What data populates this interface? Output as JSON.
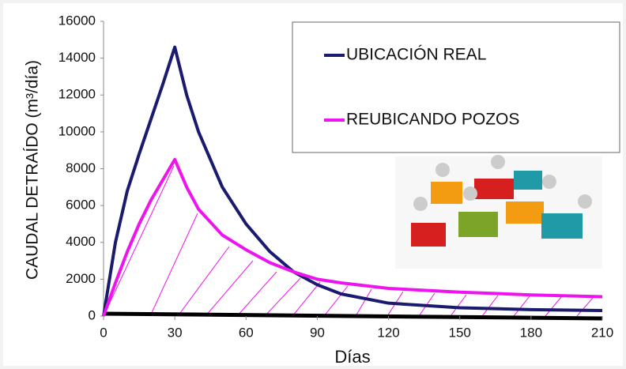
{
  "chart_data": {
    "type": "line",
    "xlabel": "Días",
    "ylabel": "CAUDAL DETRAÍDO (m³/día)",
    "x": [
      0,
      5,
      10,
      15,
      20,
      25,
      30,
      35,
      40,
      50,
      60,
      70,
      80,
      90,
      100,
      120,
      150,
      180,
      210
    ],
    "series": [
      {
        "name": "UBICACIÓN REAL",
        "color": "#1a1a6e",
        "values": [
          0,
          4000,
          6800,
          8800,
          10700,
          12600,
          14600,
          12000,
          10000,
          7000,
          5000,
          3500,
          2400,
          1700,
          1200,
          700,
          450,
          350,
          300
        ]
      },
      {
        "name": "REUBICANDO POZOS",
        "color": "#ee14ee",
        "values": [
          0,
          1800,
          3500,
          5000,
          6300,
          7400,
          8500,
          7000,
          5800,
          4400,
          3600,
          2900,
          2400,
          2000,
          1800,
          1500,
          1300,
          1150,
          1050
        ]
      }
    ],
    "xlim": [
      0,
      210
    ],
    "xticks": [
      0,
      30,
      60,
      90,
      120,
      150,
      180,
      210
    ],
    "ylim": [
      0,
      16000
    ],
    "yticks": [
      0,
      2000,
      4000,
      6000,
      8000,
      10000,
      12000,
      14000,
      16000
    ],
    "legend": "upper right",
    "grid": false
  }
}
